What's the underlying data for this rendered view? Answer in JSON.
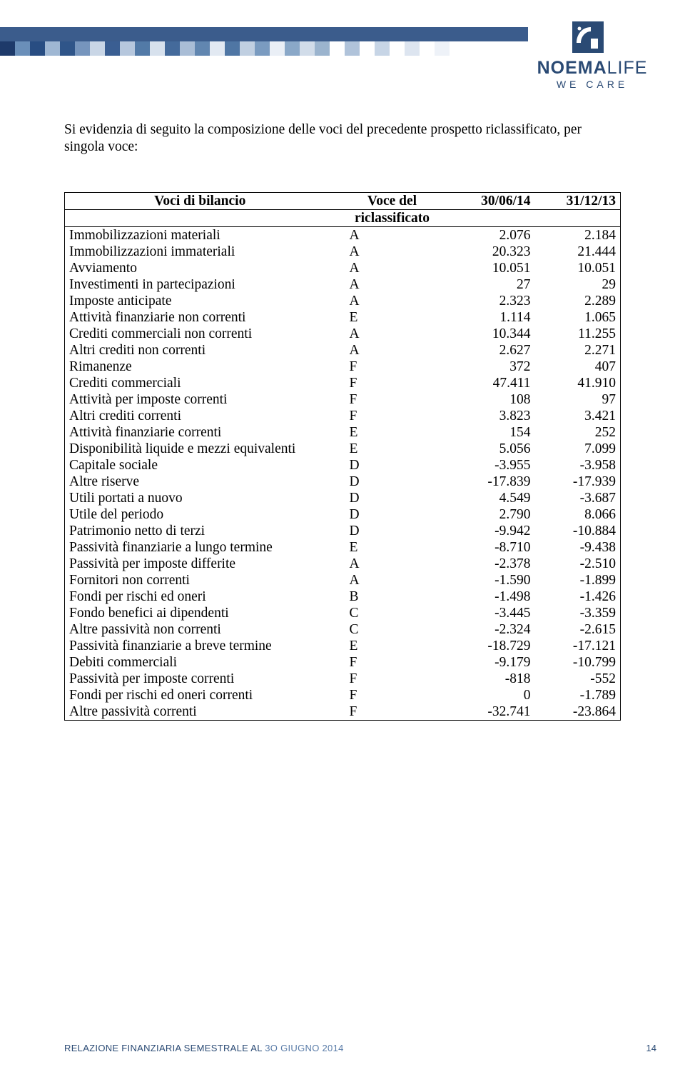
{
  "header": {
    "brand_bold": "NOEMA",
    "brand_light": "LIFE",
    "tagline": "WE CARE",
    "bar_color": "#3b5c8c",
    "mosaic_colors": [
      "#1e3a6a",
      "#6a8fb9",
      "#284d82",
      "#9fb7d3",
      "#2f5589",
      "#7695bd",
      "#c9d6e6",
      "#3a5e92",
      "#b6c7dd",
      "#527aa7",
      "#d7e1ed",
      "#446a9b",
      "#a9bdd6",
      "#6186b0",
      "#e2e9f2",
      "#4f76a4",
      "#c0cfe1",
      "#7a9bc0",
      "#eaeff6",
      "#8aa8c8",
      "#d1dce9",
      "#9bb4ce",
      "#ffffff",
      "#b0c3da",
      "#ffffff",
      "#c7d5e6",
      "#ffffff",
      "#dde5f0",
      "#ffffff",
      "#eef2f8"
    ],
    "logo_colors": {
      "primary": "#2a4a74",
      "accent": "#ffffff"
    }
  },
  "intro_text": "Si evidenzia di seguito la composizione delle voci del precedente prospetto riclassificato, per singola voce:",
  "table": {
    "columns": [
      "Voci di bilancio",
      "Voce del riclassificato",
      "30/06/14",
      "31/12/13"
    ],
    "col_widths_pct": [
      48,
      18,
      17,
      17
    ],
    "rows": [
      [
        "Immobilizzazioni materiali",
        "A",
        "2.076",
        "2.184"
      ],
      [
        "Immobilizzazioni immateriali",
        "A",
        "20.323",
        "21.444"
      ],
      [
        "Avviamento",
        "A",
        "10.051",
        "10.051"
      ],
      [
        "Investimenti in partecipazioni",
        "A",
        "27",
        "29"
      ],
      [
        "Imposte anticipate",
        "A",
        "2.323",
        "2.289"
      ],
      [
        "Attività finanziarie non correnti",
        "E",
        "1.114",
        "1.065"
      ],
      [
        "Crediti commerciali non correnti",
        "A",
        "10.344",
        "11.255"
      ],
      [
        "Altri crediti non correnti",
        "A",
        "2.627",
        "2.271"
      ],
      [
        "Rimanenze",
        "F",
        "372",
        "407"
      ],
      [
        "Crediti commerciali",
        "F",
        "47.411",
        "41.910"
      ],
      [
        "Attività per imposte correnti",
        "F",
        "108",
        "97"
      ],
      [
        "Altri crediti correnti",
        "F",
        "3.823",
        "3.421"
      ],
      [
        "Attività finanziarie correnti",
        "E",
        "154",
        "252"
      ],
      [
        "Disponibilità liquide e mezzi equivalenti",
        "E",
        "5.056",
        "7.099"
      ],
      [
        "Capitale sociale",
        "D",
        "-3.955",
        "-3.958"
      ],
      [
        "Altre riserve",
        "D",
        "-17.839",
        "-17.939"
      ],
      [
        "Utili portati a nuovo",
        "D",
        "4.549",
        "-3.687"
      ],
      [
        "Utile del periodo",
        "D",
        "2.790",
        "8.066"
      ],
      [
        "Patrimonio netto di terzi",
        "D",
        "-9.942",
        "-10.884"
      ],
      [
        "Passività finanziarie a lungo termine",
        "E",
        "-8.710",
        "-9.438"
      ],
      [
        "Passività per imposte differite",
        "A",
        "-2.378",
        "-2.510"
      ],
      [
        "Fornitori non correnti",
        "A",
        "-1.590",
        "-1.899"
      ],
      [
        "Fondi per rischi ed oneri",
        "B",
        "-1.498",
        "-1.426"
      ],
      [
        "Fondo benefici ai dipendenti",
        "C",
        "-3.445",
        "-3.359"
      ],
      [
        "Altre passività non correnti",
        "C",
        "-2.324",
        "-2.615"
      ],
      [
        "Passività finanziarie a breve termine",
        "E",
        "-18.729",
        "-17.121"
      ],
      [
        "Debiti commerciali",
        "F",
        "-9.179",
        "-10.799"
      ],
      [
        "Passività per imposte correnti",
        "F",
        "-818",
        "-552"
      ],
      [
        "Fondi per rischi ed oneri correnti",
        "F",
        "0",
        "-1.789"
      ],
      [
        "Altre passività correnti",
        "F",
        "-32.741",
        "-23.864"
      ]
    ]
  },
  "footer": {
    "report_title_a": "RELAZIONE FINANZIARIA SEMESTRALE AL ",
    "report_title_b": "3O GIUGNO 2014",
    "page_number": "14"
  }
}
